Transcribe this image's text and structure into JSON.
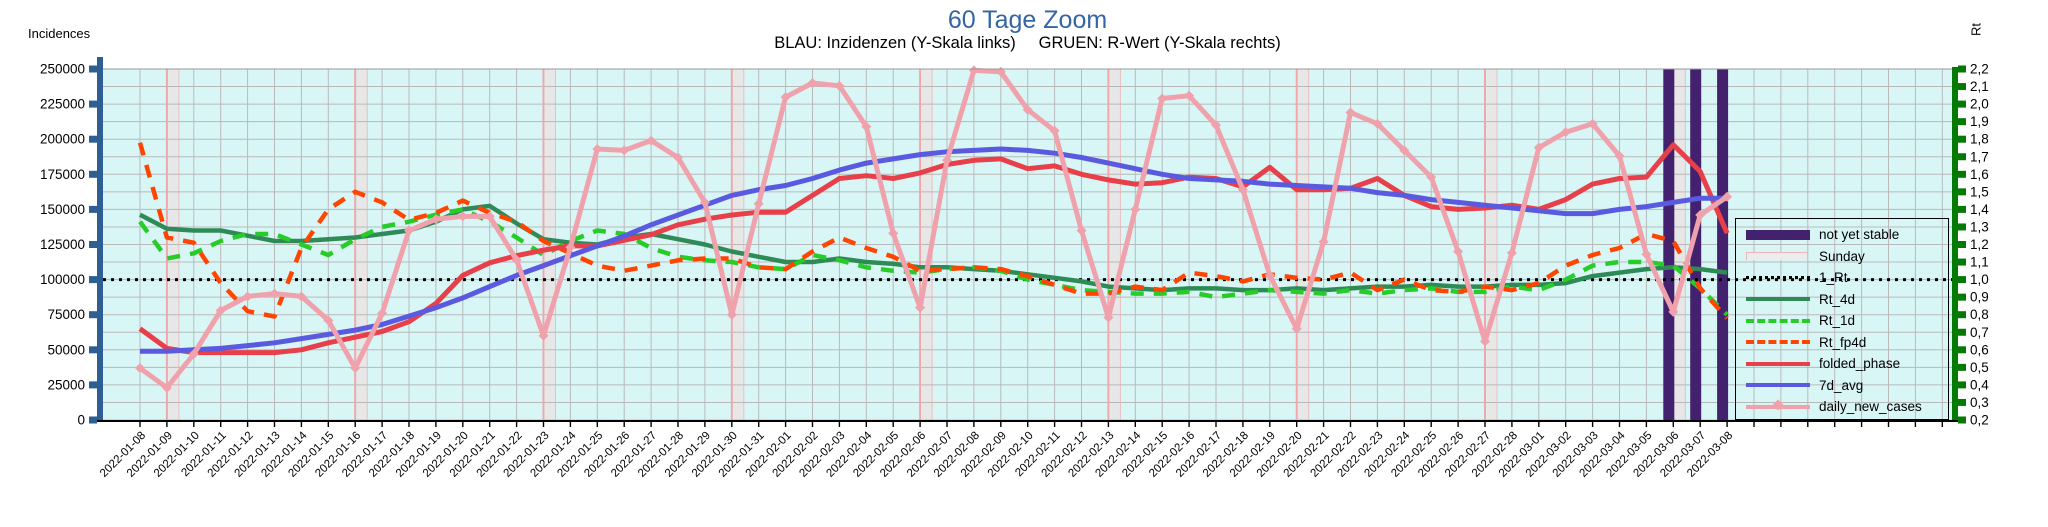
{
  "title": "60 Tage Zoom",
  "title_color": "#3465a4",
  "subtitle": "BLAU: Inzidenzen (Y-Skala links)     GRUEN: R-Wert (Y-Skala rechts)",
  "left_axis": {
    "title": "Incidences",
    "color": "#2d5f92",
    "tick_labels": [
      "250000",
      "225000",
      "200000",
      "175000",
      "150000",
      "125000",
      "100000",
      "75000",
      "50000",
      "25000",
      "0"
    ]
  },
  "right_axis": {
    "title": "Rt",
    "color": "#047a04",
    "tick_labels": [
      "2,2",
      "2,1",
      "2,0",
      "1,9",
      "1,8",
      "1,7",
      "1,6",
      "1,5",
      "1,4",
      "1,3",
      "1,2",
      "1,1",
      "1,0",
      "0,9",
      "0,8",
      "0,7",
      "0,6",
      "0,5",
      "0,4",
      "0,3",
      "0,2"
    ]
  },
  "legend": {
    "items": [
      {
        "label": "not yet stable",
        "type": "bar",
        "color": "#44216e"
      },
      {
        "label": "Sunday",
        "type": "band",
        "color": "#ececec",
        "edge": "#f5b4b8"
      },
      {
        "label": "1_Rt",
        "type": "dotted",
        "color": "#000000"
      },
      {
        "label": "Rt_4d",
        "type": "solid",
        "color": "#2e8b57"
      },
      {
        "label": "Rt_1d",
        "type": "dashed",
        "color": "#28cc28"
      },
      {
        "label": "Rt_fp4d",
        "type": "dashed",
        "color": "#ff4500"
      },
      {
        "label": "folded_phase",
        "type": "solid",
        "color": "#e8404a"
      },
      {
        "label": "7d_avg",
        "type": "solid",
        "color": "#5a5ae0"
      },
      {
        "label": "daily_new_cases",
        "type": "marker-line",
        "color": "#f0a2ac"
      }
    ]
  },
  "chart_data": {
    "type": "line",
    "title": "60 Tage Zoom",
    "xlabel": "",
    "ylabel_left": "Incidences",
    "ylabel_right": "Rt",
    "ylim_left": [
      0,
      250000
    ],
    "ylim_right": [
      0.2,
      2.2
    ],
    "grid": true,
    "plot_bg": "#d9f6f6",
    "grid_color": "#b9b9b9",
    "x_dates": [
      "2022-01-08",
      "2022-01-09",
      "2022-01-10",
      "2022-01-11",
      "2022-01-12",
      "2022-01-13",
      "2022-01-14",
      "2022-01-15",
      "2022-01-16",
      "2022-01-17",
      "2022-01-18",
      "2022-01-19",
      "2022-01-20",
      "2022-01-21",
      "2022-01-22",
      "2022-01-23",
      "2022-01-24",
      "2022-01-25",
      "2022-01-26",
      "2022-01-27",
      "2022-01-28",
      "2022-01-29",
      "2022-01-30",
      "2022-01-31",
      "2022-02-01",
      "2022-02-02",
      "2022-02-03",
      "2022-02-04",
      "2022-02-05",
      "2022-02-06",
      "2022-02-07",
      "2022-02-08",
      "2022-02-09",
      "2022-02-10",
      "2022-02-11",
      "2022-02-12",
      "2022-02-13",
      "2022-02-14",
      "2022-02-15",
      "2022-02-16",
      "2022-02-17",
      "2022-02-18",
      "2022-02-19",
      "2022-02-20",
      "2022-02-21",
      "2022-02-22",
      "2022-02-23",
      "2022-02-24",
      "2022-02-25",
      "2022-02-26",
      "2022-02-27",
      "2022-02-28",
      "2022-03-01",
      "2022-03-02",
      "2022-03-03",
      "2022-03-04",
      "2022-03-05",
      "2022-03-06",
      "2022-03-07",
      "2022-03-08"
    ],
    "sunday_indices": [
      1,
      8,
      15,
      22,
      29,
      36,
      43,
      50,
      57
    ],
    "sunday_fill": "#e7e7e7",
    "sunday_edge": "#f2a6aa",
    "not_yet_stable_indices": [
      57,
      58,
      59
    ],
    "not_yet_stable_color": "#44216e",
    "series": [
      {
        "name": "1_Rt",
        "axis": "right",
        "style": "dotted",
        "color": "#000000",
        "constant": 1.0
      },
      {
        "name": "Rt_4d",
        "axis": "right",
        "style": "solid",
        "color": "#2e8b57",
        "values": [
          1.37,
          1.29,
          1.28,
          1.28,
          1.25,
          1.22,
          1.22,
          1.23,
          1.24,
          1.26,
          1.28,
          1.33,
          1.4,
          1.42,
          1.32,
          1.23,
          1.21,
          1.2,
          1.24,
          1.26,
          1.23,
          1.2,
          1.16,
          1.13,
          1.1,
          1.1,
          1.12,
          1.1,
          1.09,
          1.07,
          1.07,
          1.06,
          1.05,
          1.03,
          1.01,
          0.99,
          0.96,
          0.95,
          0.94,
          0.95,
          0.95,
          0.94,
          0.94,
          0.95,
          0.94,
          0.95,
          0.96,
          0.96,
          0.97,
          0.96,
          0.96,
          0.97,
          0.97,
          0.98,
          1.02,
          1.04,
          1.06,
          1.07,
          1.06,
          1.04
        ]
      },
      {
        "name": "Rt_1d",
        "axis": "right",
        "style": "dashed",
        "color": "#28cc28",
        "values": [
          1.33,
          1.12,
          1.15,
          1.22,
          1.26,
          1.26,
          1.2,
          1.14,
          1.23,
          1.3,
          1.33,
          1.37,
          1.4,
          1.33,
          1.24,
          1.14,
          1.22,
          1.28,
          1.26,
          1.18,
          1.13,
          1.11,
          1.1,
          1.07,
          1.06,
          1.14,
          1.11,
          1.07,
          1.05,
          1.04,
          1.06,
          1.07,
          1.05,
          1.0,
          0.97,
          0.94,
          0.93,
          0.92,
          0.92,
          0.93,
          0.9,
          0.92,
          0.94,
          0.93,
          0.92,
          0.94,
          0.92,
          0.94,
          0.95,
          0.93,
          0.93,
          0.96,
          0.94,
          1.0,
          1.08,
          1.1,
          1.1,
          1.08,
          0.95,
          0.8
        ]
      },
      {
        "name": "Rt_fp4d",
        "axis": "right",
        "style": "dashed",
        "color": "#ff4500",
        "values": [
          1.78,
          1.24,
          1.21,
          0.98,
          0.82,
          0.79,
          1.18,
          1.4,
          1.5,
          1.44,
          1.34,
          1.38,
          1.45,
          1.38,
          1.33,
          1.22,
          1.15,
          1.08,
          1.05,
          1.08,
          1.11,
          1.12,
          1.12,
          1.07,
          1.06,
          1.16,
          1.24,
          1.18,
          1.13,
          1.05,
          1.06,
          1.07,
          1.06,
          1.02,
          0.97,
          0.92,
          0.92,
          0.96,
          0.94,
          1.04,
          1.02,
          0.99,
          1.03,
          1.01,
          1.0,
          1.04,
          0.94,
          1.0,
          0.94,
          0.93,
          0.96,
          0.94,
          0.98,
          1.08,
          1.14,
          1.18,
          1.26,
          1.22,
          0.95,
          0.78
        ]
      },
      {
        "name": "folded_phase",
        "axis": "left",
        "style": "solid",
        "color": "#e8404a",
        "values": [
          65000,
          51000,
          48000,
          48000,
          48000,
          48000,
          50000,
          55000,
          59000,
          63000,
          70000,
          83000,
          103000,
          112000,
          117000,
          121000,
          124000,
          124000,
          128000,
          132000,
          139000,
          143000,
          146000,
          148000,
          148000,
          160000,
          172000,
          174000,
          172000,
          176000,
          182000,
          185000,
          186000,
          179000,
          181000,
          175000,
          171000,
          168000,
          169000,
          173000,
          172000,
          166000,
          180000,
          164000,
          164000,
          165000,
          172000,
          160000,
          152000,
          150000,
          151000,
          153000,
          150000,
          157000,
          168000,
          172000,
          173000,
          196000,
          177000,
          133000
        ]
      },
      {
        "name": "7d_avg",
        "axis": "left",
        "style": "solid",
        "color": "#5a5ae0",
        "values": [
          49000,
          49000,
          50000,
          51000,
          53000,
          55000,
          58000,
          61000,
          64000,
          68000,
          74000,
          80000,
          87000,
          95000,
          103000,
          110000,
          117000,
          124000,
          131000,
          139000,
          146000,
          153000,
          160000,
          164000,
          167000,
          172000,
          178000,
          183000,
          186000,
          189000,
          191000,
          192000,
          193000,
          192000,
          190000,
          187000,
          183000,
          179000,
          175000,
          172000,
          171000,
          170000,
          168000,
          167000,
          166000,
          165000,
          162000,
          160000,
          157000,
          155000,
          153000,
          151000,
          149000,
          147000,
          147000,
          150000,
          152000,
          155000,
          158000,
          158000
        ]
      },
      {
        "name": "daily_new_cases",
        "axis": "left",
        "style": "marker-line",
        "color": "#f0a2ac",
        "values": [
          37000,
          23000,
          47000,
          78000,
          88000,
          90000,
          88000,
          71000,
          37000,
          76000,
          135000,
          143000,
          145000,
          145000,
          114000,
          60000,
          123000,
          193000,
          192000,
          199000,
          187000,
          155000,
          75000,
          154000,
          230000,
          240000,
          238000,
          209000,
          133000,
          80000,
          185000,
          249000,
          248000,
          221000,
          206000,
          135000,
          73000,
          150000,
          229000,
          231000,
          210000,
          164000,
          103000,
          65000,
          127000,
          219000,
          211000,
          192000,
          173000,
          120000,
          56000,
          119000,
          194000,
          205000,
          211000,
          188000,
          118000,
          77000,
          146000,
          159000
        ]
      }
    ]
  }
}
